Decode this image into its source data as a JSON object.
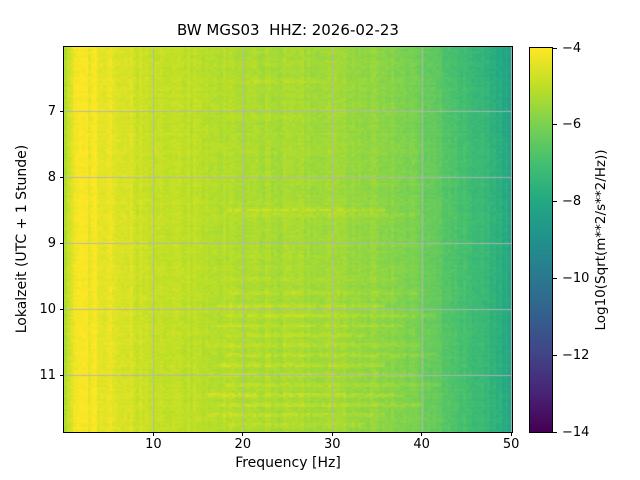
{
  "figure": {
    "background_color": "#ffffff",
    "spine_color": "#000000",
    "text_color": "#000000"
  },
  "chart_data": {
    "type": "heatmap",
    "subtype": "seismic-spectrogram",
    "title": "BW MGS03  HHZ: 2026-02-23",
    "xlabel": "Frequency [Hz]",
    "ylabel": "Lokalzeit (UTC + 1 Stunde)",
    "xlim": [
      0,
      50.1
    ],
    "ylim_hours": [
      6.03,
      11.86
    ],
    "y_direction": "down",
    "grid": true,
    "grid_color": "#b2b2bc",
    "x_ticks": [
      {
        "value": 10,
        "label": "10"
      },
      {
        "value": 20,
        "label": "20"
      },
      {
        "value": 30,
        "label": "30"
      },
      {
        "value": 40,
        "label": "40"
      },
      {
        "value": 50,
        "label": "50"
      }
    ],
    "y_ticks": [
      {
        "value": 7,
        "label": "7"
      },
      {
        "value": 8,
        "label": "8"
      },
      {
        "value": 9,
        "label": "9"
      },
      {
        "value": 10,
        "label": "10"
      },
      {
        "value": 11,
        "label": "11"
      }
    ],
    "colormap": "viridis",
    "viridis_stops": [
      "#440154",
      "#482475",
      "#414487",
      "#355f8d",
      "#2a788e",
      "#21918c",
      "#22a884",
      "#44bf70",
      "#7ad151",
      "#bddf26",
      "#fde725"
    ],
    "colorbar": {
      "label": "Log10(Sqrt(m**2/s**2/Hz))",
      "vmin": -14,
      "vmax": -4,
      "ticks": [
        {
          "value": -4,
          "label": "−4"
        },
        {
          "value": -6,
          "label": "−6"
        },
        {
          "value": -8,
          "label": "−8"
        },
        {
          "value": -10,
          "label": "−10"
        },
        {
          "value": -12,
          "label": "−12"
        },
        {
          "value": -14,
          "label": "−14"
        }
      ]
    },
    "spectrum_profile": {
      "freq_hz": [
        0.0,
        0.35,
        0.9,
        1.8,
        3.5,
        5.0,
        6.5,
        8.0,
        10,
        13,
        16,
        19,
        21,
        24,
        28,
        31,
        34,
        36,
        38,
        40,
        42,
        44,
        46,
        48,
        50.1
      ],
      "log10_amp": [
        -5.7,
        -4.75,
        -4.3,
        -4.15,
        -4.18,
        -4.3,
        -4.5,
        -4.75,
        -4.88,
        -4.97,
        -5.02,
        -5.18,
        -5.3,
        -5.32,
        -5.38,
        -5.48,
        -5.6,
        -5.72,
        -5.88,
        -6.15,
        -6.5,
        -6.85,
        -7.15,
        -7.5,
        -8.0
      ]
    },
    "noise_streaks": [
      {
        "t": 6.55,
        "f0": 20,
        "f1": 30,
        "amp": 0.25
      },
      {
        "t": 7.1,
        "f0": 18,
        "f1": 28,
        "amp": 0.2
      },
      {
        "t": 8.5,
        "f0": 18,
        "f1": 36,
        "amp": 0.55
      },
      {
        "t": 8.57,
        "f0": 20,
        "f1": 40,
        "amp": 0.35
      },
      {
        "t": 9.2,
        "f0": 19,
        "f1": 30,
        "amp": 0.25
      },
      {
        "t": 9.55,
        "f0": 17,
        "f1": 38,
        "amp": 0.3
      },
      {
        "t": 9.75,
        "f0": 18,
        "f1": 40,
        "amp": 0.35
      },
      {
        "t": 9.95,
        "f0": 17,
        "f1": 36,
        "amp": 0.45
      },
      {
        "t": 10.1,
        "f0": 18,
        "f1": 42,
        "amp": 0.5
      },
      {
        "t": 10.25,
        "f0": 17,
        "f1": 38,
        "amp": 0.35
      },
      {
        "t": 10.4,
        "f0": 18,
        "f1": 34,
        "amp": 0.45
      },
      {
        "t": 10.55,
        "f0": 16,
        "f1": 40,
        "amp": 0.4
      },
      {
        "t": 10.7,
        "f0": 18,
        "f1": 42,
        "amp": 0.5
      },
      {
        "t": 10.85,
        "f0": 17,
        "f1": 36,
        "amp": 0.45
      },
      {
        "t": 11.0,
        "f0": 16,
        "f1": 40,
        "amp": 0.5
      },
      {
        "t": 11.15,
        "f0": 18,
        "f1": 42,
        "amp": 0.45
      },
      {
        "t": 11.3,
        "f0": 16,
        "f1": 38,
        "amp": 0.55
      },
      {
        "t": 11.45,
        "f0": 17,
        "f1": 40,
        "amp": 0.45
      },
      {
        "t": 11.6,
        "f0": 16,
        "f1": 36,
        "amp": 0.5
      },
      {
        "t": 11.75,
        "f0": 18,
        "f1": 34,
        "amp": 0.4
      }
    ]
  }
}
